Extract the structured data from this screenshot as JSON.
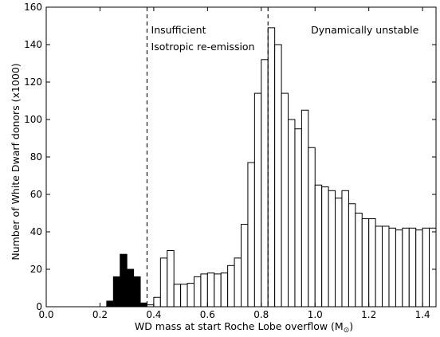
{
  "chart_data": {
    "type": "bar",
    "xlabel": "WD mass at start Roche Lobe overflow (M",
    "xlabel_subscript": "⊙",
    "xlabel_suffix": ")",
    "ylabel": "Number of White Dwarf donors (x1000)",
    "xlim": [
      0.0,
      1.45
    ],
    "ylim": [
      0,
      160
    ],
    "xticks": [
      "0.0",
      "0.2",
      "0.4",
      "0.6",
      "0.8",
      "1.0",
      "1.2",
      "1.4"
    ],
    "yticks": [
      "0",
      "20",
      "40",
      "60",
      "80",
      "100",
      "120",
      "140",
      "160"
    ],
    "bin_width": 0.025,
    "series": [
      {
        "fill": "#000000",
        "bins_start": [
          0.225,
          0.25,
          0.275,
          0.3,
          0.325,
          0.35
        ],
        "values": [
          3,
          16,
          28,
          20,
          16,
          2
        ]
      },
      {
        "fill": "#ffffff",
        "bins_start": [
          0.375,
          0.4,
          0.425,
          0.45,
          0.475,
          0.5,
          0.525,
          0.55,
          0.575,
          0.6,
          0.625,
          0.65,
          0.675,
          0.7,
          0.725,
          0.75,
          0.775,
          0.8,
          0.825,
          0.85,
          0.875,
          0.9,
          0.925,
          0.95,
          0.975,
          1.0,
          1.025,
          1.05,
          1.075,
          1.1,
          1.125,
          1.15,
          1.175,
          1.2,
          1.225,
          1.25,
          1.275,
          1.3,
          1.325,
          1.35,
          1.375,
          1.4,
          1.425
        ],
        "values": [
          1,
          5,
          26,
          30,
          12,
          12,
          12.5,
          16,
          17.5,
          18,
          17.5,
          18,
          22,
          26,
          44,
          77,
          114,
          132,
          149,
          140,
          114,
          100,
          95,
          105,
          85,
          65,
          64,
          62,
          58,
          62,
          55,
          50,
          47,
          47,
          43,
          43,
          42,
          41,
          42,
          42,
          41,
          42,
          42
        ]
      }
    ],
    "vlines": [
      0.375,
      0.825
    ],
    "annotations": [
      {
        "text": "Insufficient",
        "x": 0.39,
        "y": 146
      },
      {
        "text": "Isotropic re-emission",
        "x": 0.39,
        "y": 137
      },
      {
        "text": "Dynamically unstable",
        "x": 0.985,
        "y": 146
      }
    ]
  }
}
